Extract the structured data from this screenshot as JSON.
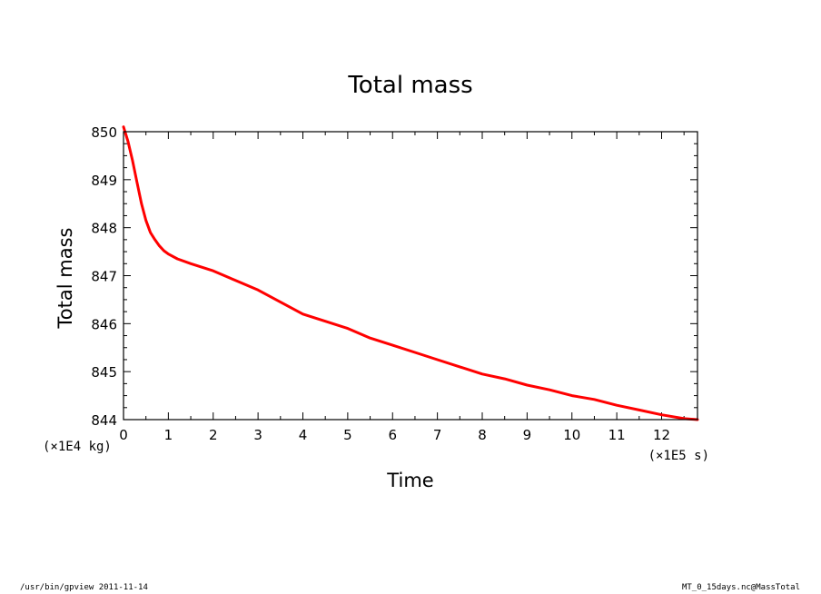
{
  "chart_data": {
    "type": "line",
    "title": "Total mass",
    "xlabel": "Time",
    "ylabel": "Total mass",
    "x_unit": "(×1E5 s)",
    "y_unit": "(×1E4 kg)",
    "xlim": [
      0,
      12.8
    ],
    "ylim": [
      844,
      850
    ],
    "x_ticks": [
      0,
      1,
      2,
      3,
      4,
      5,
      6,
      7,
      8,
      9,
      10,
      11,
      12
    ],
    "x_tick_labels": [
      "0",
      "1",
      "2",
      "3",
      "4",
      "5",
      "6",
      "7",
      "8",
      "9",
      "10",
      "11",
      "12"
    ],
    "y_ticks": [
      844,
      845,
      846,
      847,
      848,
      849,
      850
    ],
    "y_tick_labels": [
      "844",
      "845",
      "846",
      "847",
      "848",
      "849",
      "850"
    ],
    "grid": false,
    "series": [
      {
        "color": "#ff0000",
        "x": [
          0,
          0.1,
          0.2,
          0.3,
          0.4,
          0.5,
          0.6,
          0.7,
          0.8,
          0.9,
          1.0,
          1.2,
          1.5,
          2.0,
          2.5,
          3.0,
          3.5,
          4.0,
          4.5,
          5.0,
          5.5,
          6.0,
          6.5,
          7.0,
          7.5,
          8.0,
          8.5,
          9.0,
          9.5,
          10.0,
          10.5,
          11.0,
          11.5,
          12.0,
          12.5,
          12.8
        ],
        "y": [
          850.1,
          849.8,
          849.4,
          848.95,
          848.5,
          848.15,
          847.9,
          847.75,
          847.62,
          847.52,
          847.45,
          847.35,
          847.25,
          847.1,
          846.9,
          846.7,
          846.45,
          846.2,
          846.05,
          845.9,
          845.7,
          845.55,
          845.4,
          845.25,
          845.1,
          844.95,
          844.85,
          844.72,
          844.62,
          844.5,
          844.42,
          844.3,
          844.2,
          844.1,
          844.02,
          844.0
        ]
      }
    ]
  },
  "footer": {
    "left": "/usr/bin/gpview  2011-11-14",
    "right": "MT_0_15days.nc@MassTotal"
  }
}
